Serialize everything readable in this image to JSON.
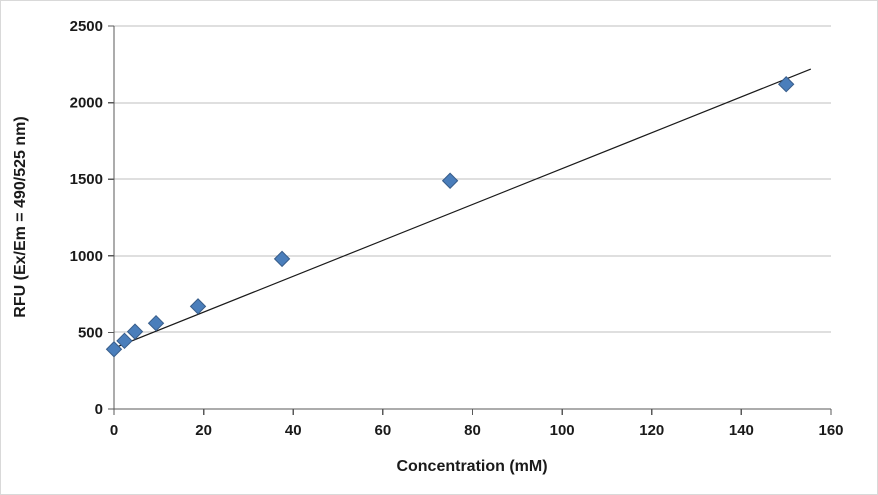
{
  "chart_data": {
    "type": "scatter",
    "title": "",
    "xlabel": "Concentration (mM)",
    "ylabel": "RFU (Ex/Em = 490/525 nm)",
    "xlim": [
      0,
      160
    ],
    "ylim": [
      0,
      2500
    ],
    "x_ticks": [
      0,
      20,
      40,
      60,
      80,
      100,
      120,
      140,
      160
    ],
    "y_ticks": [
      0,
      500,
      1000,
      1500,
      2000,
      2500
    ],
    "grid": "horizontal-only",
    "legend": "none",
    "points": [
      {
        "x": 0,
        "y": 390
      },
      {
        "x": 2.34,
        "y": 445
      },
      {
        "x": 4.69,
        "y": 505
      },
      {
        "x": 9.38,
        "y": 560
      },
      {
        "x": 18.75,
        "y": 670
      },
      {
        "x": 37.5,
        "y": 980
      },
      {
        "x": 75,
        "y": 1490
      },
      {
        "x": 150,
        "y": 2120
      }
    ],
    "trendline": {
      "x1": 0,
      "y1": 398,
      "x2": 155.5,
      "y2": 2219
    },
    "colors": {
      "marker": "#4a7ebb",
      "marker_border": "#385d8a",
      "trendline": "#1a1a1a",
      "gridline": "#bfbfbf",
      "axis": "#595959",
      "text": "#1a1a1a"
    }
  }
}
